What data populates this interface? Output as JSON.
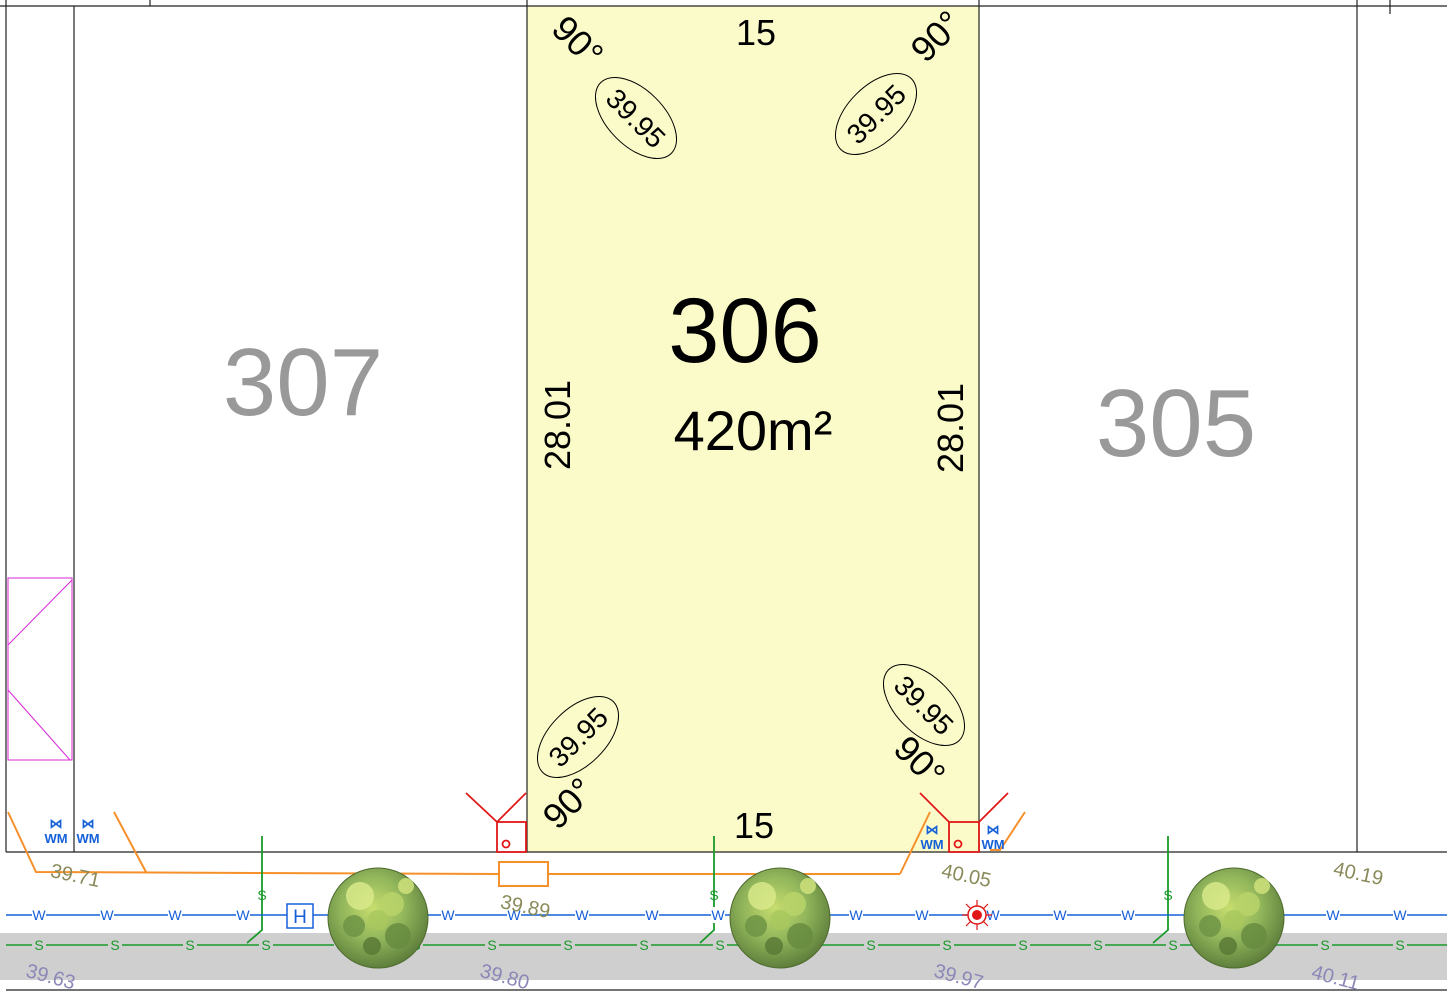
{
  "lots": [
    {
      "number": "307",
      "color": "#999999"
    },
    {
      "number": "306",
      "area": "420m²",
      "fill": "#fbfbca"
    },
    {
      "number": "305",
      "color": "#999999"
    }
  ],
  "lot_306": {
    "frontage_top": "15",
    "frontage_bottom": "15",
    "side_left": "28.01",
    "side_right": "28.01",
    "corner_angles": [
      "90°",
      "90°",
      "90°",
      "90°"
    ],
    "corner_levels": [
      "39.95",
      "39.95",
      "39.95",
      "39.95"
    ]
  },
  "verge_levels": [
    "39.71",
    "39.89",
    "40.05",
    "40.19"
  ],
  "road_levels": [
    "39.63",
    "39.80",
    "39.97",
    "40.11"
  ],
  "services": {
    "water_main_label": "W",
    "sewer_main_label": "S",
    "sewer_connection_label": "S",
    "water_meter_label": "WM",
    "hydrant_label": "H",
    "water_color": "#1560d8",
    "sewer_color": "#1a9a2a",
    "power_color": "#f5902a",
    "electrical_color": "#e01818"
  },
  "street_trees": 3
}
